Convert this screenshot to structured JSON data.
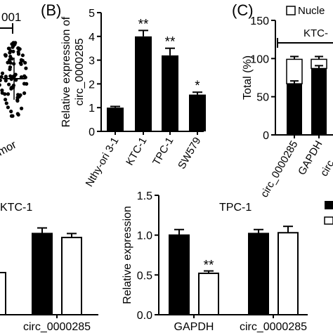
{
  "panels": {
    "a": {
      "tick_fragment": "001",
      "category_fragment": "mor"
    },
    "b": {
      "letter": "(B)"
    },
    "c": {
      "letter": "(C)",
      "legend_fragment": "Nucle",
      "group_fragment": "KTC-",
      "category_fragment": "circ_"
    }
  },
  "chart_data": [
    {
      "type": "bar",
      "panel": "B",
      "categories": [
        "Nthy-ori 3-1",
        "KTC-1",
        "TPC-1",
        "SW579"
      ],
      "values": [
        1.0,
        4.0,
        3.2,
        1.55
      ],
      "errors": [
        0.05,
        0.25,
        0.3,
        0.1
      ],
      "significance": [
        "",
        "**",
        "**",
        "*"
      ],
      "ylabel": "Relative expression of circ_0000285",
      "ylim": [
        0,
        5
      ],
      "yticks": [
        0,
        1,
        2,
        3,
        4,
        5
      ],
      "color": "#000000"
    },
    {
      "type": "bar",
      "panel": "C",
      "stacked": true,
      "categories": [
        "circ_0000285",
        "GAPDH"
      ],
      "series": [
        {
          "values": [
            67,
            87
          ],
          "color": "#000000"
        },
        {
          "values": [
            32,
            12
          ],
          "color": "#ffffff"
        }
      ],
      "ylabel": "Total (%)",
      "ylim": [
        0,
        150
      ],
      "yticks": [
        0,
        50,
        100,
        150
      ]
    },
    {
      "type": "bar",
      "panel": "D",
      "title": "KTC-1",
      "categories": [
        "circ_0000285"
      ],
      "series": [
        {
          "values": [
            1.02
          ],
          "errors": [
            0.07
          ],
          "color": "#000000"
        },
        {
          "values": [
            0.97
          ],
          "errors": [
            0.05
          ],
          "color": "#ffffff"
        }
      ],
      "ylim": [
        0,
        1.5
      ]
    },
    {
      "type": "bar",
      "panel": "E",
      "title": "TPC-1",
      "categories": [
        "GAPDH",
        "circ_0000285"
      ],
      "series": [
        {
          "values": [
            1.0,
            1.02
          ],
          "errors": [
            0.07,
            0.05
          ],
          "color": "#000000"
        },
        {
          "values": [
            0.52,
            1.03
          ],
          "errors": [
            0.03,
            0.08
          ],
          "color": "#ffffff"
        }
      ],
      "significance": [
        "**",
        ""
      ],
      "ylabel": "Relative expression",
      "ylim": [
        0,
        1.5
      ],
      "yticks": [
        0.0,
        0.5,
        1.0,
        1.5
      ]
    }
  ]
}
